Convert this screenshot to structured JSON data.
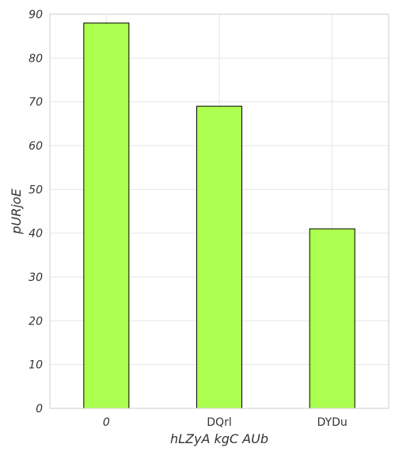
{
  "chart_data": {
    "type": "bar",
    "categories": [
      "0",
      "DQrl",
      "DYDu"
    ],
    "category_italic": [
      true,
      false,
      false
    ],
    "values": [
      88,
      69,
      41
    ],
    "xlabel": "hLZyA kgC AUb",
    "ylabel": "pURjoE",
    "ylim": [
      0,
      90
    ],
    "yticks": [
      0,
      10,
      20,
      30,
      40,
      50,
      60,
      70,
      80,
      90
    ],
    "grid": true,
    "bar_color": "#adff4f",
    "bar_edge_color": "#000000"
  }
}
